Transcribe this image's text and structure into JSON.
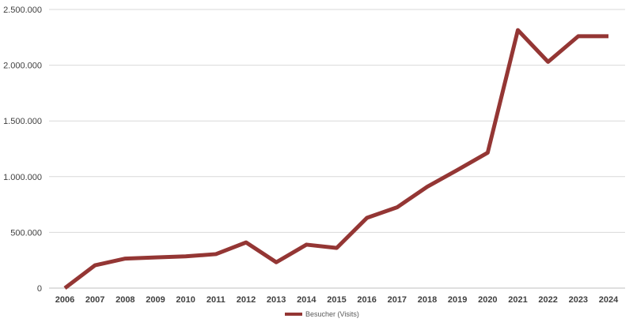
{
  "chart_data": {
    "type": "line",
    "title": "",
    "xlabel": "",
    "ylabel": "",
    "x": [
      "2006",
      "2007",
      "2008",
      "2009",
      "2010",
      "2011",
      "2012",
      "2013",
      "2014",
      "2015",
      "2016",
      "2017",
      "2018",
      "2019",
      "2020",
      "2021",
      "2022",
      "2023",
      "2024"
    ],
    "series": [
      {
        "name": "Besucher (Visits)",
        "color": "#943634",
        "values": [
          0,
          205000,
          265000,
          275000,
          285000,
          305000,
          410000,
          232000,
          390000,
          360000,
          630000,
          725000,
          910000,
          1060000,
          1215000,
          2315000,
          2030000,
          2260000,
          2260000
        ]
      }
    ],
    "ylim": [
      0,
      2500000
    ],
    "y_ticks": [
      0,
      500000,
      1000000,
      1500000,
      2000000,
      2500000
    ],
    "y_tick_labels": [
      "0",
      "500.000",
      "1.000.000",
      "1.500.000",
      "2.000.000",
      "2.500.000"
    ],
    "grid": "horizontal",
    "legend": "bottom-center"
  }
}
